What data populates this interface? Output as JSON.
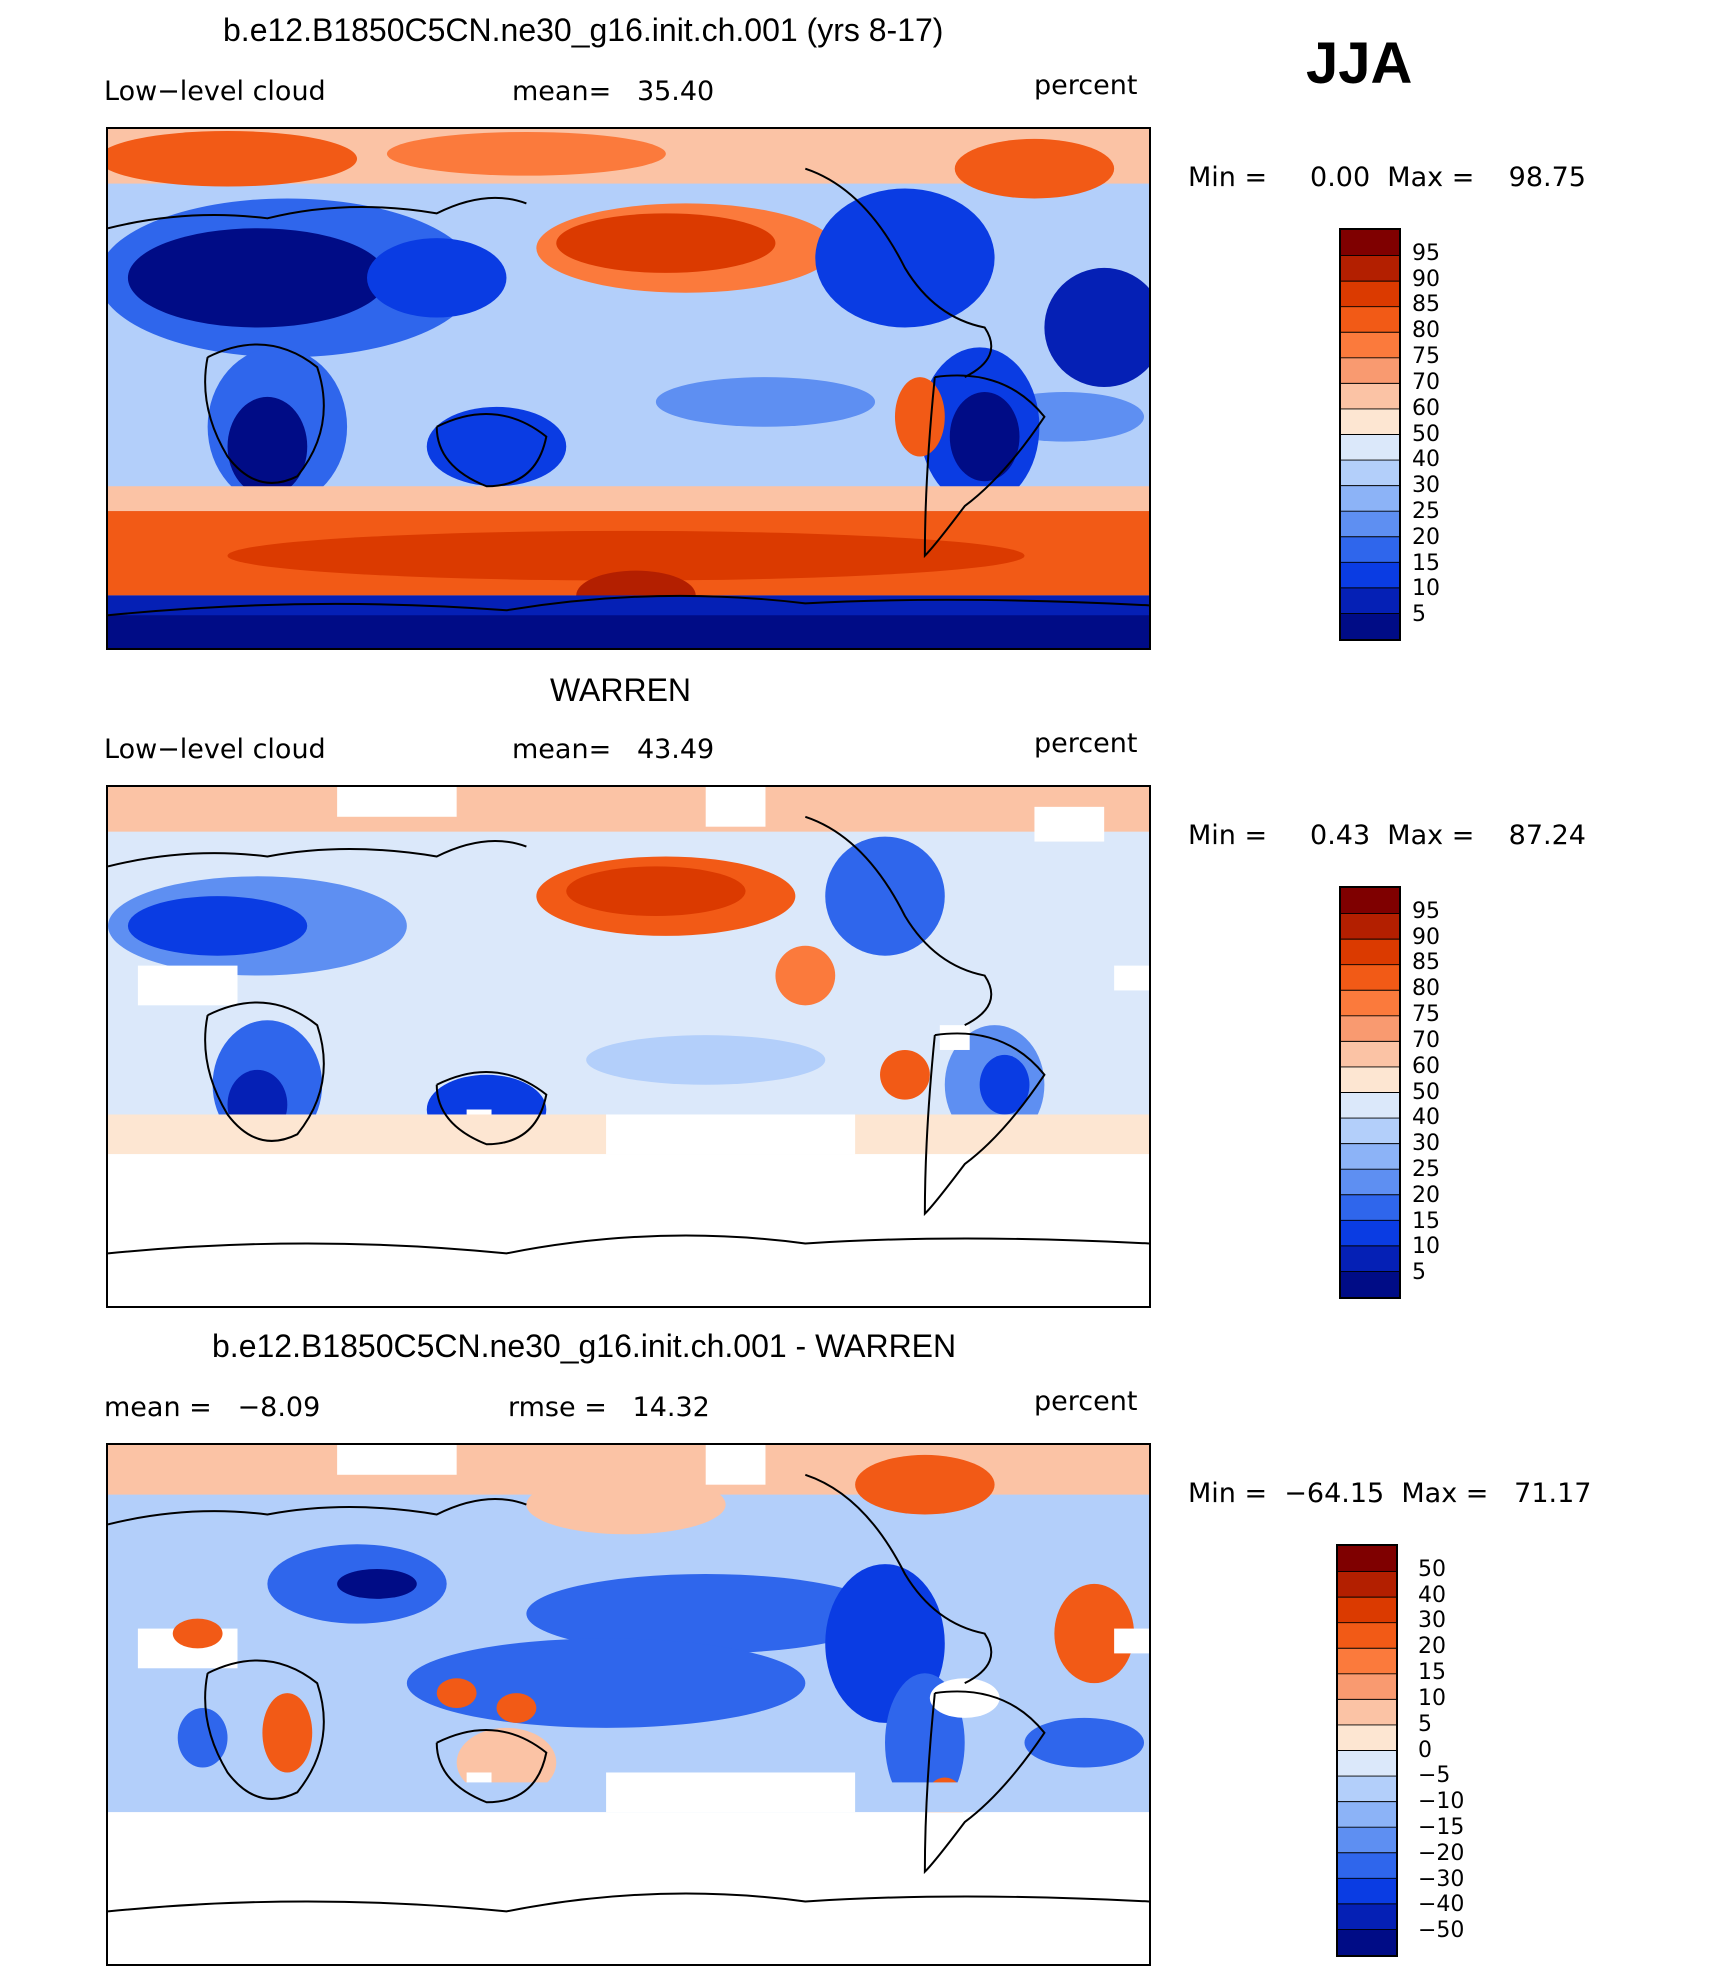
{
  "figure": {
    "season": "JJA",
    "panels": [
      {
        "id": "model",
        "title": "b.e12.B1850C5CN.ne30_g16.init.ch.001 (yrs 8-17)",
        "left_label": "Low−level cloud",
        "center_label": "mean=   35.40",
        "right_label": "percent",
        "minmax": "Min =     0.00  Max =    98.75",
        "colorbar_labels": [
          "95",
          "90",
          "85",
          "80",
          "75",
          "70",
          "60",
          "50",
          "40",
          "30",
          "25",
          "20",
          "15",
          "10",
          "5"
        ]
      },
      {
        "id": "obs",
        "title": "WARREN",
        "left_label": "Low−level cloud",
        "center_label": "mean=   43.49",
        "right_label": "percent",
        "minmax": "Min =     0.43  Max =    87.24",
        "colorbar_labels": [
          "95",
          "90",
          "85",
          "80",
          "75",
          "70",
          "60",
          "50",
          "40",
          "30",
          "25",
          "20",
          "15",
          "10",
          "5"
        ]
      },
      {
        "id": "diff",
        "title": "b.e12.B1850C5CN.ne30_g16.init.ch.001 - WARREN",
        "left_label": "mean =   −8.09",
        "center_label": "rmse =   14.32",
        "right_label": "percent",
        "minmax": "Min =  −64.15  Max =   71.17",
        "colorbar_labels": [
          "50",
          "40",
          "30",
          "20",
          "15",
          "10",
          "5",
          "0",
          "−5",
          "−10",
          "−15",
          "−20",
          "−30",
          "−40",
          "−50"
        ]
      }
    ]
  },
  "colors": {
    "palette_top_to_bottom": [
      "#7f0000",
      "#b31f00",
      "#db3a00",
      "#f25a16",
      "#fb7a3c",
      "#f99a70",
      "#fbc3a5",
      "#fde6d2",
      "#dbe8fa",
      "#b3cffa",
      "#8cb3f7",
      "#5e8ff2",
      "#2f66ec",
      "#0a3ce3",
      "#0520b5",
      "#000c86"
    ],
    "ocean_blue": "#9ec1f7",
    "land_blue": "#1e56e8",
    "storm_red": "#e8441a"
  }
}
